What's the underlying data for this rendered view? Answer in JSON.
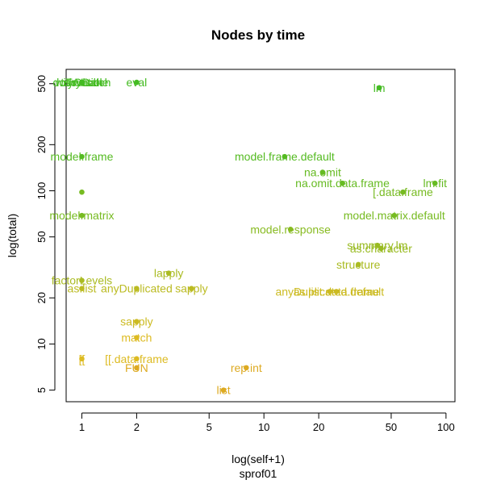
{
  "chart_data": {
    "type": "scatter",
    "title": "Nodes by time",
    "xlabel": "log(self+1)",
    "subtitle": "sprof01",
    "ylabel": "log(total)",
    "x_scale": "log",
    "y_scale": "log",
    "xlim": [
      0.82,
      112
    ],
    "ylim": [
      4.2,
      620
    ],
    "x_ticks": [
      1,
      2,
      5,
      10,
      20,
      50,
      100
    ],
    "y_ticks": [
      5,
      10,
      20,
      50,
      100,
      200,
      500
    ],
    "x_tick_labels": [
      "1",
      "2",
      "5",
      "10",
      "20",
      "50",
      "100"
    ],
    "y_tick_labels": [
      "5",
      "10",
      "20",
      "50",
      "100",
      "200",
      "500"
    ],
    "grid": false,
    "points": [
      {
        "label": "lm",
        "x": 43,
        "y": 470,
        "color": "#44bb22"
      },
      {
        "label": "eval",
        "x": 2,
        "y": 510,
        "color": "#44bb22"
      },
      {
        "label": "doTryCatch",
        "x": 1,
        "y": 510,
        "color": "#44bb22"
      },
      {
        "label": "tryCatch",
        "x": 1,
        "y": 510,
        "color": "#44bb22"
      },
      {
        "label": "source",
        "x": 1,
        "y": 510,
        "color": "#44bb22"
      },
      {
        "label": "withVisible",
        "x": 1,
        "y": 510,
        "color": "#44bb22"
      },
      {
        "label": "model.frame",
        "x": 1,
        "y": 167,
        "color": "#55bb22"
      },
      {
        "label": "model.frame.default",
        "x": 13,
        "y": 167,
        "color": "#55bb22"
      },
      {
        "label": "na.omit",
        "x": 21,
        "y": 132,
        "color": "#66bb22"
      },
      {
        "label": "na.omit.data.frame",
        "x": 27,
        "y": 112,
        "color": "#66bb22"
      },
      {
        "label": "lm.fit",
        "x": 87,
        "y": 112,
        "color": "#66bb22"
      },
      {
        "label": "[.data.frame",
        "x": 58,
        "y": 98,
        "color": "#77bb22"
      },
      {
        "label": "",
        "x": 1,
        "y": 98,
        "color": "#77bb22"
      },
      {
        "label": "model.matrix",
        "x": 1,
        "y": 69,
        "color": "#77bb22"
      },
      {
        "label": "model.matrix.default",
        "x": 52,
        "y": 69,
        "color": "#77bb22"
      },
      {
        "label": "model.response",
        "x": 14,
        "y": 56,
        "color": "#88bb22"
      },
      {
        "label": "summary.lm",
        "x": 42,
        "y": 44,
        "color": "#99bb22"
      },
      {
        "label": "as.character",
        "x": 44,
        "y": 42,
        "color": "#99bb22"
      },
      {
        "label": "structure",
        "x": 33,
        "y": 33,
        "color": "#aabb22"
      },
      {
        "label": "lapply",
        "x": 3,
        "y": 29,
        "color": "#aabb22"
      },
      {
        "label": "factorLevels",
        "x": 1,
        "y": 26,
        "color": "#aabb22"
      },
      {
        "label": "as.list",
        "x": 1,
        "y": 23,
        "color": "#bbbb22"
      },
      {
        "label": "anyDuplicated",
        "x": 2,
        "y": 23,
        "color": "#bbbb22"
      },
      {
        "label": "sapply",
        "x": 4,
        "y": 23,
        "color": "#bbbb22"
      },
      {
        "label": "anyDuplicated.default",
        "x": 23,
        "y": 22,
        "color": "#ccbb22"
      },
      {
        "label": "as.list.data.frame",
        "x": 25,
        "y": 22,
        "color": "#ccbb22"
      },
      {
        "label": "sapply",
        "x": 2,
        "y": 14,
        "color": "#ccbb22"
      },
      {
        "label": "match",
        "x": 2,
        "y": 11,
        "color": "#ddbb22"
      },
      {
        "label": "[[.data.frame",
        "x": 2,
        "y": 8,
        "color": "#ddbb22"
      },
      {
        "label": "[[",
        "x": 1,
        "y": 8,
        "color": "#ddbb22"
      },
      {
        "label": "FUN",
        "x": 2,
        "y": 7,
        "color": "#ddaa22"
      },
      {
        "label": "rep.int",
        "x": 8,
        "y": 7,
        "color": "#ddaa22"
      },
      {
        "label": "list",
        "x": 6,
        "y": 5,
        "color": "#ddaa22"
      }
    ]
  }
}
